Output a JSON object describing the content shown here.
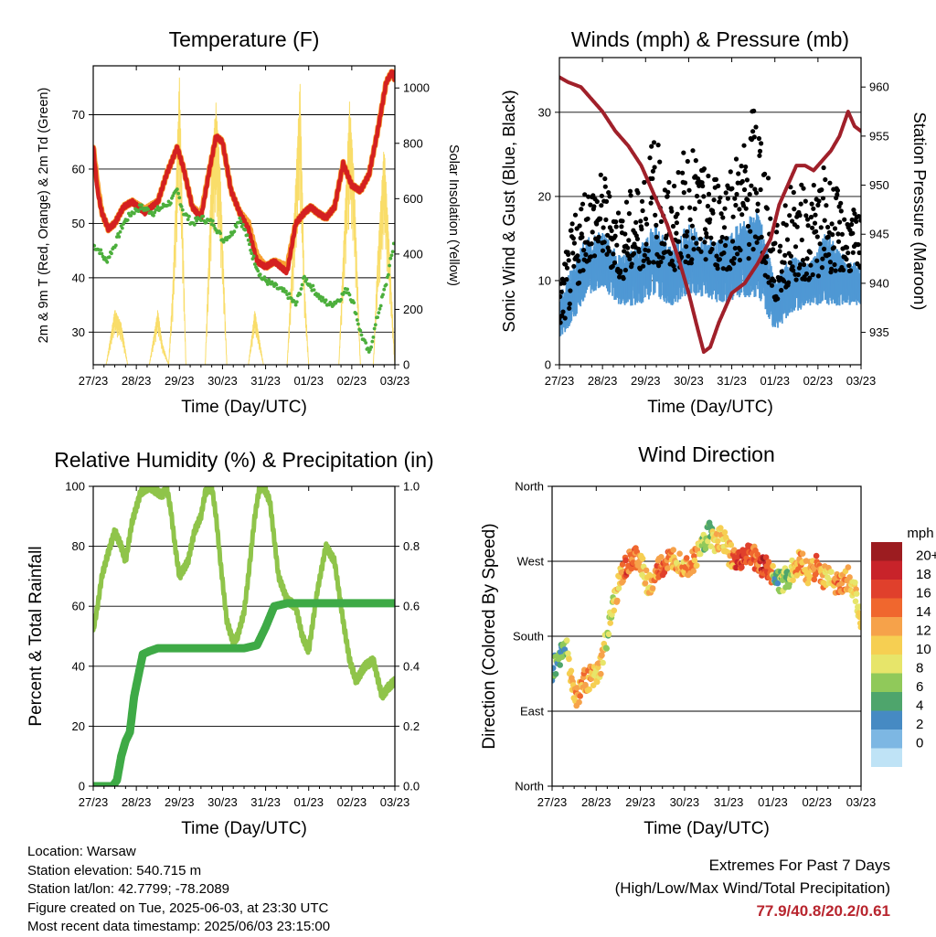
{
  "chart_data": [
    {
      "type": "line",
      "title": "Temperature (F)",
      "xlabel": "Time (Day/UTC)",
      "ylabel": "2m & 9m T (Red, Orange) & 2m Td (Green)",
      "ylabel_right": "Solar Insolation (Yellow)",
      "x_ticks": [
        "27/23",
        "28/23",
        "29/23",
        "30/23",
        "31/23",
        "01/23",
        "02/23",
        "03/23"
      ],
      "xlim": [
        0,
        7
      ],
      "ylim": [
        24,
        79
      ],
      "y_ticks": [
        30,
        40,
        50,
        60,
        70
      ],
      "ylim_right": [
        0,
        1080
      ],
      "y_ticks_right": [
        0,
        200,
        400,
        600,
        800,
        1000
      ],
      "grid": true,
      "series": [
        {
          "color": "#f7a030",
          "axis": "left",
          "x": [
            0,
            0.1,
            0.2,
            0.35,
            0.5,
            0.7,
            0.9,
            1.2,
            1.5,
            1.7,
            1.95,
            2.1,
            2.3,
            2.5,
            2.7,
            2.85,
            3.0,
            3.2,
            3.4,
            3.6,
            3.8,
            4.0,
            4.2,
            4.5,
            4.7,
            4.9,
            5.05,
            5.2,
            5.4,
            5.6,
            5.8,
            6.0,
            6.2,
            6.4,
            6.6,
            6.8,
            6.95,
            7.0
          ],
          "y": [
            64,
            57,
            52,
            49,
            50,
            53,
            54,
            52.5,
            54,
            59,
            64,
            60,
            53,
            51.5,
            60,
            66,
            65,
            56,
            52,
            50,
            44,
            42,
            43,
            42,
            50,
            52,
            53,
            52,
            51,
            53,
            61,
            57,
            56,
            59,
            67,
            76,
            78,
            76.5
          ]
        },
        {
          "color": "#d42020",
          "axis": "left",
          "x": [
            0,
            0.1,
            0.2,
            0.35,
            0.5,
            0.7,
            0.9,
            1.2,
            1.5,
            1.7,
            1.95,
            2.1,
            2.3,
            2.5,
            2.7,
            2.85,
            3.0,
            3.2,
            3.4,
            3.6,
            3.8,
            4.0,
            4.2,
            4.5,
            4.7,
            4.9,
            5.05,
            5.2,
            5.4,
            5.6,
            5.8,
            6.0,
            6.2,
            6.4,
            6.6,
            6.8,
            6.95,
            7.0
          ],
          "y": [
            64,
            56,
            52,
            49,
            50,
            53,
            54,
            52,
            54,
            59,
            64,
            60,
            53,
            51,
            60,
            66,
            65,
            56,
            52,
            49,
            43,
            42,
            43,
            41,
            50,
            52,
            53,
            52,
            51,
            53,
            61,
            57,
            56,
            59,
            67,
            76,
            78,
            76.5
          ]
        },
        {
          "color": "#4caf3c",
          "axis": "left",
          "x": [
            0,
            0.15,
            0.3,
            0.5,
            0.7,
            0.9,
            1.1,
            1.4,
            1.6,
            1.8,
            1.95,
            2.1,
            2.3,
            2.5,
            2.8,
            3.0,
            3.2,
            3.4,
            3.55,
            3.7,
            3.9,
            4.1,
            4.3,
            4.5,
            4.7,
            4.9,
            5.1,
            5.3,
            5.5,
            5.7,
            5.9,
            6.05,
            6.2,
            6.4,
            6.6,
            6.8,
            6.95,
            7.0
          ],
          "y": [
            46,
            45,
            43,
            46,
            50,
            52,
            53,
            52,
            53,
            54,
            56,
            52,
            50,
            51,
            50,
            47,
            48,
            51,
            48,
            44,
            40,
            39,
            38,
            37,
            35,
            40,
            38,
            36,
            35,
            36,
            38,
            35,
            30,
            26,
            33,
            39,
            45,
            48
          ]
        },
        {
          "color": "#f9dd6a",
          "axis": "right",
          "x": [
            0,
            0.3,
            0.5,
            0.65,
            0.8,
            1.0,
            1.3,
            1.5,
            1.6,
            1.75,
            1.85,
            2.0,
            2.15,
            2.3,
            2.6,
            2.75,
            2.85,
            2.95,
            3.1,
            3.3,
            3.6,
            3.75,
            3.85,
            3.95,
            4.05,
            4.2,
            4.5,
            4.65,
            4.8,
            4.9,
            5.0,
            5.15,
            5.4,
            5.7,
            5.85,
            5.95,
            6.05,
            6.2,
            6.5,
            6.6,
            6.75,
            6.85,
            7.0
          ],
          "values": [
            0,
            0,
            200,
            150,
            0,
            0,
            0,
            200,
            80,
            0,
            300,
            1050,
            0,
            0,
            0,
            750,
            950,
            700,
            0,
            0,
            0,
            200,
            100,
            0,
            0,
            0,
            0,
            500,
            1030,
            300,
            0,
            0,
            0,
            0,
            600,
            960,
            700,
            0,
            0,
            400,
            800,
            500,
            0
          ]
        }
      ]
    },
    {
      "type": "line",
      "title": "Winds (mph) & Pressure (mb)",
      "xlabel": "Time (Day/UTC)",
      "ylabel": "Sonic Wind & Gust (Blue, Black)",
      "ylabel_right": "Station Pressure (Maroon)",
      "x_ticks": [
        "27/23",
        "28/23",
        "29/23",
        "30/23",
        "31/23",
        "01/23",
        "02/23",
        "03/23"
      ],
      "xlim": [
        0,
        7
      ],
      "ylim": [
        0,
        36.5
      ],
      "y_ticks": [
        0,
        10,
        20,
        30
      ],
      "ylim_right": [
        931.7,
        963
      ],
      "y_ticks_right": [
        935,
        940,
        945,
        950,
        955,
        960
      ],
      "grid": true,
      "series": [
        {
          "color": "#4f98d4",
          "axis": "left",
          "kind": "band",
          "x": [
            0,
            0.3,
            0.6,
            1.0,
            1.4,
            1.8,
            2.2,
            2.6,
            3.0,
            3.4,
            3.8,
            4.2,
            4.6,
            5.0,
            5.4,
            5.8,
            6.2,
            6.6,
            7.0
          ],
          "low": [
            3,
            5,
            8,
            9,
            7,
            7,
            8,
            7,
            8,
            8,
            7,
            8,
            8,
            4,
            6,
            7,
            7,
            7,
            7
          ],
          "high": [
            8,
            12,
            15,
            16,
            13,
            14,
            17,
            14,
            17,
            15,
            15,
            17,
            19,
            10,
            13,
            12,
            16,
            13,
            12
          ]
        },
        {
          "color": "#000000",
          "axis": "left",
          "kind": "scatter",
          "x": [
            0,
            0.3,
            0.6,
            1.0,
            1.4,
            1.8,
            2.2,
            2.6,
            3.0,
            3.4,
            3.8,
            4.2,
            4.6,
            5.0,
            5.4,
            5.8,
            6.2,
            6.6,
            7.0
          ],
          "low": [
            4,
            7,
            12,
            13,
            10,
            11,
            12,
            11,
            12,
            12,
            11,
            12,
            13,
            7,
            10,
            10,
            11,
            11,
            11
          ],
          "high": [
            10,
            17,
            22,
            23,
            19,
            22,
            28,
            21,
            27,
            23,
            24,
            26,
            33,
            16,
            22,
            21,
            24,
            19,
            18
          ]
        },
        {
          "color": "#a0202a",
          "axis": "right",
          "x": [
            0,
            0.2,
            0.5,
            0.8,
            1.0,
            1.3,
            1.6,
            1.9,
            2.2,
            2.5,
            2.8,
            3.0,
            3.2,
            3.35,
            3.5,
            3.7,
            4.0,
            4.3,
            4.6,
            4.9,
            5.1,
            5.3,
            5.5,
            5.7,
            5.9,
            6.1,
            6.3,
            6.5,
            6.7,
            6.85,
            7.0
          ],
          "values": [
            961,
            960.5,
            960,
            958.5,
            957.5,
            955.5,
            954,
            952,
            949,
            946,
            942,
            939,
            935.5,
            933,
            933.5,
            936,
            939,
            940,
            942,
            944.5,
            948,
            950,
            952,
            952,
            951.5,
            952.5,
            953.5,
            955,
            957.5,
            956,
            955.5
          ]
        }
      ]
    },
    {
      "type": "line",
      "title": "Relative Humidity (%) & Precipitation (in)",
      "xlabel": "Time (Day/UTC)",
      "ylabel": "Percent & Total Rainfall",
      "x_ticks": [
        "27/23",
        "28/23",
        "29/23",
        "30/23",
        "31/23",
        "01/23",
        "02/23",
        "03/23"
      ],
      "xlim": [
        0,
        7
      ],
      "ylim": [
        0,
        100
      ],
      "y_ticks": [
        0,
        20,
        40,
        60,
        80,
        100
      ],
      "ylim_right": [
        0,
        1.0
      ],
      "y_ticks_right": [
        "0.0",
        "0.2",
        "0.4",
        "0.6",
        "0.8",
        "1.0"
      ],
      "grid": true,
      "series": [
        {
          "color": "#8fc44a",
          "axis": "left",
          "x": [
            0,
            0.1,
            0.2,
            0.35,
            0.5,
            0.65,
            0.75,
            0.9,
            1.1,
            1.3,
            1.5,
            1.6,
            1.7,
            1.8,
            1.9,
            2.0,
            2.2,
            2.35,
            2.5,
            2.6,
            2.75,
            2.85,
            2.95,
            3.1,
            3.25,
            3.35,
            3.5,
            3.6,
            3.75,
            3.85,
            3.95,
            4.1,
            4.3,
            4.5,
            4.7,
            4.85,
            5.0,
            5.2,
            5.4,
            5.6,
            5.8,
            5.95,
            6.1,
            6.3,
            6.5,
            6.7,
            6.85,
            7.0
          ],
          "y": [
            52,
            60,
            70,
            78,
            85,
            80,
            75,
            88,
            98,
            100,
            98,
            97,
            100,
            92,
            80,
            70,
            75,
            85,
            90,
            98,
            100,
            90,
            75,
            55,
            48,
            50,
            58,
            70,
            90,
            99,
            100,
            95,
            70,
            62,
            60,
            50,
            45,
            65,
            80,
            75,
            55,
            42,
            35,
            40,
            42,
            30,
            33,
            35
          ]
        },
        {
          "color": "#3eaa46",
          "axis": "right",
          "x": [
            0,
            0.15,
            0.3,
            0.45,
            0.55,
            0.65,
            0.75,
            0.85,
            0.95,
            1.05,
            1.15,
            1.3,
            1.5,
            2.0,
            2.5,
            3.0,
            3.5,
            3.8,
            4.0,
            4.2,
            4.5,
            5.0,
            6.0,
            7.0
          ],
          "values": [
            0,
            0,
            0,
            0,
            0.02,
            0.1,
            0.15,
            0.18,
            0.3,
            0.37,
            0.44,
            0.45,
            0.46,
            0.46,
            0.46,
            0.46,
            0.46,
            0.47,
            0.53,
            0.6,
            0.61,
            0.61,
            0.61,
            0.61
          ]
        }
      ]
    },
    {
      "type": "scatter",
      "title": "Wind Direction",
      "xlabel": "Time (Day/UTC)",
      "ylabel": "Direction (Colored By Speed)",
      "x_ticks": [
        "27/23",
        "28/23",
        "29/23",
        "30/23",
        "31/23",
        "01/23",
        "02/23",
        "03/23"
      ],
      "xlim": [
        0,
        7
      ],
      "ylim": [
        0,
        360
      ],
      "y_ticks": [
        0,
        90,
        180,
        270,
        360
      ],
      "y_tick_labels": [
        "North",
        "East",
        "South",
        "West",
        "North"
      ],
      "grid": true,
      "colorbar": {
        "title": "mph",
        "labels": [
          "20+",
          "18",
          "16",
          "14",
          "12",
          "10",
          "8",
          "6",
          "4",
          "2",
          "0"
        ],
        "colors": [
          "#9c1c20",
          "#c8232a",
          "#e0402c",
          "#f0672e",
          "#f6a24a",
          "#f6cf52",
          "#e7e56a",
          "#90c95a",
          "#4ea56c",
          "#468ac3",
          "#7db7e3",
          "#bfe3f6"
        ]
      },
      "points": {
        "x": [
          0,
          0.1,
          0.2,
          0.3,
          0.45,
          0.55,
          0.7,
          0.85,
          1.0,
          1.1,
          1.25,
          1.4,
          1.55,
          1.7,
          1.9,
          2.0,
          2.1,
          2.25,
          2.4,
          2.6,
          2.8,
          3.0,
          3.2,
          3.4,
          3.55,
          3.7,
          3.85,
          4.0,
          4.15,
          4.3,
          4.5,
          4.65,
          4.8,
          4.95,
          5.05,
          5.2,
          5.35,
          5.5,
          5.65,
          5.8,
          6.0,
          6.15,
          6.3,
          6.5,
          6.7,
          6.85,
          7.0
        ],
        "y": [
          135,
          150,
          160,
          175,
          125,
          105,
          125,
          130,
          130,
          145,
          180,
          220,
          250,
          265,
          275,
          270,
          250,
          240,
          260,
          270,
          275,
          265,
          270,
          290,
          305,
          295,
          300,
          280,
          270,
          275,
          280,
          270,
          265,
          255,
          255,
          245,
          250,
          265,
          270,
          255,
          265,
          250,
          255,
          240,
          250,
          235,
          200
        ],
        "speed": [
          4,
          6,
          4,
          6,
          12,
          14,
          12,
          14,
          10,
          12,
          8,
          10,
          12,
          16,
          14,
          12,
          10,
          12,
          14,
          16,
          12,
          12,
          14,
          8,
          6,
          10,
          12,
          10,
          16,
          18,
          16,
          14,
          18,
          16,
          4,
          8,
          6,
          12,
          14,
          10,
          16,
          12,
          10,
          14,
          12,
          10,
          10
        ]
      }
    }
  ],
  "footer": {
    "location": "Location: Warsaw",
    "elevation": "Station elevation: 540.715 m",
    "latlon": "Station lat/lon: 42.7799; -78.2089",
    "created": "Figure created on Tue, 2025-06-03, at 23:30 UTC",
    "recent": "Most recent data timestamp: 2025/06/03 23:15:00",
    "extremes_title": "Extremes For Past 7 Days",
    "extremes_sub": "(High/Low/Max Wind/Total Precipitation)",
    "extremes_values": "77.9/40.8/20.2/0.61"
  }
}
